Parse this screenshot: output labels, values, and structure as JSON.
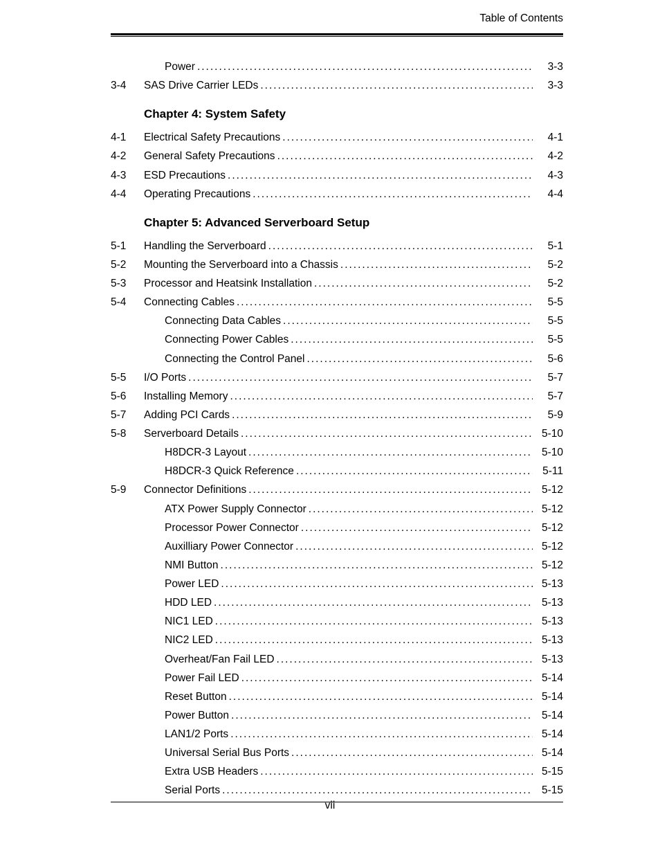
{
  "header": {
    "title": "Table of Contents"
  },
  "footer": {
    "page_number": "vii"
  },
  "style": {
    "font_body_pt": 11.5,
    "font_chapter_pt": 13,
    "text_color": "#000000",
    "background_color": "#ffffff",
    "leader_char": "."
  },
  "toc": {
    "intro_items": [
      {
        "num": "",
        "label": "Power",
        "page": "3-3",
        "sub": true
      },
      {
        "num": "3-4",
        "label": "SAS Drive Carrier LEDs",
        "page": "3-3",
        "sub": false
      }
    ],
    "chapters": [
      {
        "title": "Chapter 4: System Safety",
        "items": [
          {
            "num": "4-1",
            "label": "Electrical Safety Precautions",
            "page": "4-1",
            "sub": false
          },
          {
            "num": "4-2",
            "label": "General Safety Precautions",
            "page": "4-2",
            "sub": false
          },
          {
            "num": "4-3",
            "label": "ESD Precautions",
            "page": "4-3",
            "sub": false
          },
          {
            "num": "4-4",
            "label": "Operating Precautions",
            "page": "4-4",
            "sub": false
          }
        ]
      },
      {
        "title": "Chapter 5: Advanced Serverboard Setup",
        "items": [
          {
            "num": "5-1",
            "label": "Handling the Serverboard",
            "page": "5-1",
            "sub": false
          },
          {
            "num": "5-2",
            "label": "Mounting the Serverboard into a Chassis",
            "page": "5-2",
            "sub": false
          },
          {
            "num": "5-3",
            "label": "Processor and Heatsink Installation",
            "page": "5-2",
            "sub": false
          },
          {
            "num": "5-4",
            "label": "Connecting Cables",
            "page": "5-5",
            "sub": false
          },
          {
            "num": "",
            "label": "Connecting Data Cables",
            "page": "5-5",
            "sub": true
          },
          {
            "num": "",
            "label": "Connecting Power Cables",
            "page": "5-5",
            "sub": true
          },
          {
            "num": "",
            "label": "Connecting the Control Panel",
            "page": "5-6",
            "sub": true
          },
          {
            "num": "5-5",
            "label": "I/O Ports",
            "page": "5-7",
            "sub": false
          },
          {
            "num": "5-6",
            "label": "Installing Memory",
            "page": "5-7",
            "sub": false
          },
          {
            "num": "5-7",
            "label": "Adding PCI Cards",
            "page": "5-9",
            "sub": false
          },
          {
            "num": "5-8",
            "label": "Serverboard Details",
            "page": "5-10",
            "sub": false
          },
          {
            "num": "",
            "label": "H8DCR-3 Layout",
            "page": "5-10",
            "sub": true
          },
          {
            "num": "",
            "label": "H8DCR-3 Quick Reference",
            "page": "5-11",
            "sub": true
          },
          {
            "num": "5-9",
            "label": "Connector Definitions",
            "page": "5-12",
            "sub": false
          },
          {
            "num": "",
            "label": "ATX Power Supply Connector",
            "page": "5-12",
            "sub": true
          },
          {
            "num": "",
            "label": "Processor Power Connector",
            "page": "5-12",
            "sub": true
          },
          {
            "num": "",
            "label": "Auxilliary Power Connector",
            "page": "5-12",
            "sub": true
          },
          {
            "num": "",
            "label": "NMI Button",
            "page": "5-12",
            "sub": true
          },
          {
            "num": "",
            "label": "Power LED",
            "page": "5-13",
            "sub": true
          },
          {
            "num": "",
            "label": "HDD LED",
            "page": "5-13",
            "sub": true
          },
          {
            "num": "",
            "label": "NIC1 LED",
            "page": "5-13",
            "sub": true
          },
          {
            "num": "",
            "label": "NIC2 LED",
            "page": "5-13",
            "sub": true
          },
          {
            "num": "",
            "label": "Overheat/Fan Fail LED",
            "page": "5-13",
            "sub": true
          },
          {
            "num": "",
            "label": "Power Fail LED",
            "page": "5-14",
            "sub": true
          },
          {
            "num": "",
            "label": "Reset Button",
            "page": "5-14",
            "sub": true
          },
          {
            "num": "",
            "label": "Power Button",
            "page": "5-14",
            "sub": true
          },
          {
            "num": "",
            "label": "LAN1/2 Ports",
            "page": "5-14",
            "sub": true
          },
          {
            "num": "",
            "label": "Universal Serial Bus Ports",
            "page": "5-14",
            "sub": true
          },
          {
            "num": "",
            "label": "Extra USB Headers",
            "page": "5-15",
            "sub": true
          },
          {
            "num": "",
            "label": "Serial Ports",
            "page": "5-15",
            "sub": true
          }
        ]
      }
    ]
  }
}
